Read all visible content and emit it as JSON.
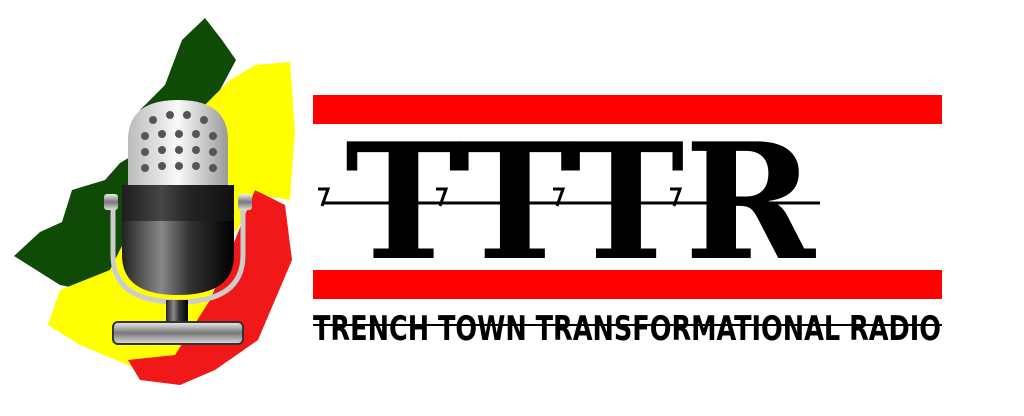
{
  "logo": {
    "acronym": "TTTR",
    "tagline": "TRENCH TOWN TRANSFORMATIONAL RADIO",
    "icon": "microphone-icon",
    "colors": {
      "accent_red": "#ff0000",
      "text": "#000000",
      "splash_green": "#0f4a06",
      "splash_yellow": "#ffff00",
      "splash_red": "#f01818"
    }
  }
}
